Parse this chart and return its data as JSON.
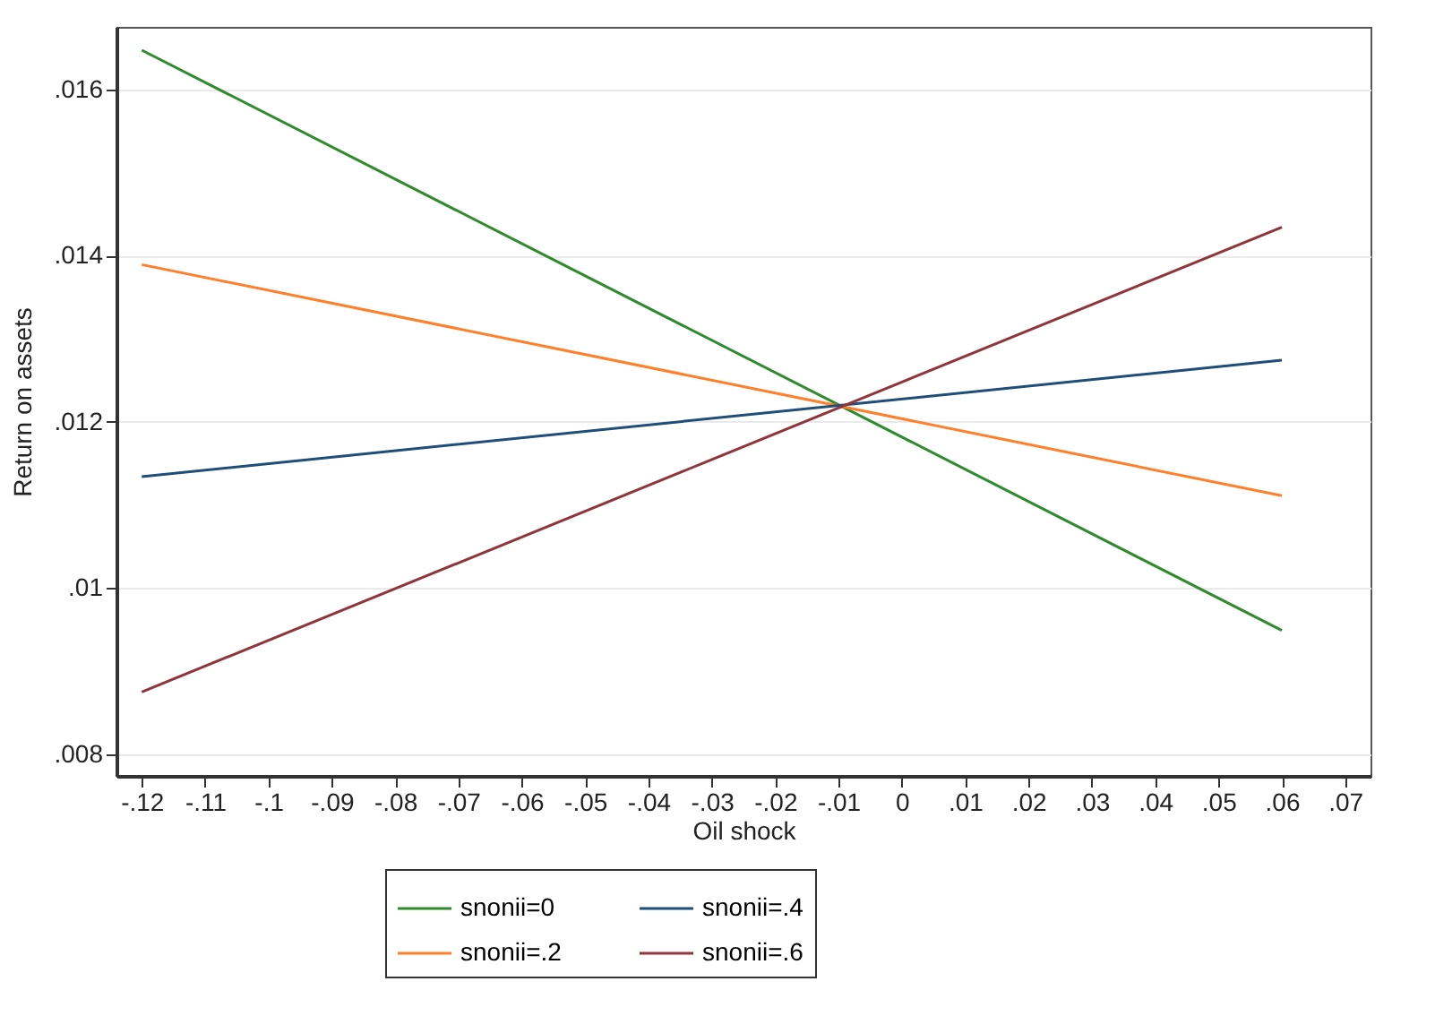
{
  "chart_data": {
    "type": "line",
    "xlabel": "Oil shock",
    "ylabel": "Return on assets",
    "x": [
      -0.12,
      0.06
    ],
    "series": [
      {
        "name": "snonii=0",
        "color": "#2e8b2e",
        "values": [
          0.01647,
          0.00949
        ]
      },
      {
        "name": "snonii=.2",
        "color": "#ff7f2a",
        "values": [
          0.01389,
          0.01111
        ]
      },
      {
        "name": "snonii=.4",
        "color": "#1f4e79",
        "values": [
          0.01134,
          0.01274
        ]
      },
      {
        "name": "snonii=.6",
        "color": "#90353b",
        "values": [
          0.00875,
          0.01434
        ]
      }
    ],
    "xlim": [
      -0.124,
      0.074
    ],
    "ylim": [
      0.00774,
      0.01675
    ],
    "xticks": [
      {
        "value": -0.12,
        "label": "-.12"
      },
      {
        "value": -0.11,
        "label": "-.11"
      },
      {
        "value": -0.1,
        "label": "-.1"
      },
      {
        "value": -0.09,
        "label": "-.09"
      },
      {
        "value": -0.08,
        "label": "-.08"
      },
      {
        "value": -0.07,
        "label": "-.07"
      },
      {
        "value": -0.06,
        "label": "-.06"
      },
      {
        "value": -0.05,
        "label": "-.05"
      },
      {
        "value": -0.04,
        "label": "-.04"
      },
      {
        "value": -0.03,
        "label": "-.03"
      },
      {
        "value": -0.02,
        "label": "-.02"
      },
      {
        "value": -0.01,
        "label": "-.01"
      },
      0,
      {
        "value": 0.01,
        "label": ".01"
      },
      {
        "value": 0.02,
        "label": ".02"
      },
      {
        "value": 0.03,
        "label": ".03"
      },
      {
        "value": 0.04,
        "label": ".04"
      },
      {
        "value": 0.05,
        "label": ".05"
      },
      {
        "value": 0.06,
        "label": ".06"
      },
      {
        "value": 0.07,
        "label": ".07"
      }
    ],
    "yticks": [
      {
        "value": 0.008,
        "label": ".008"
      },
      {
        "value": 0.01,
        "label": ".01"
      },
      {
        "value": 0.012,
        "label": ".012"
      },
      {
        "value": 0.014,
        "label": ".014"
      },
      {
        "value": 0.016,
        "label": ".016"
      }
    ],
    "grid": "y",
    "legend": "bottom",
    "marker": "none",
    "line_style": "solid"
  }
}
